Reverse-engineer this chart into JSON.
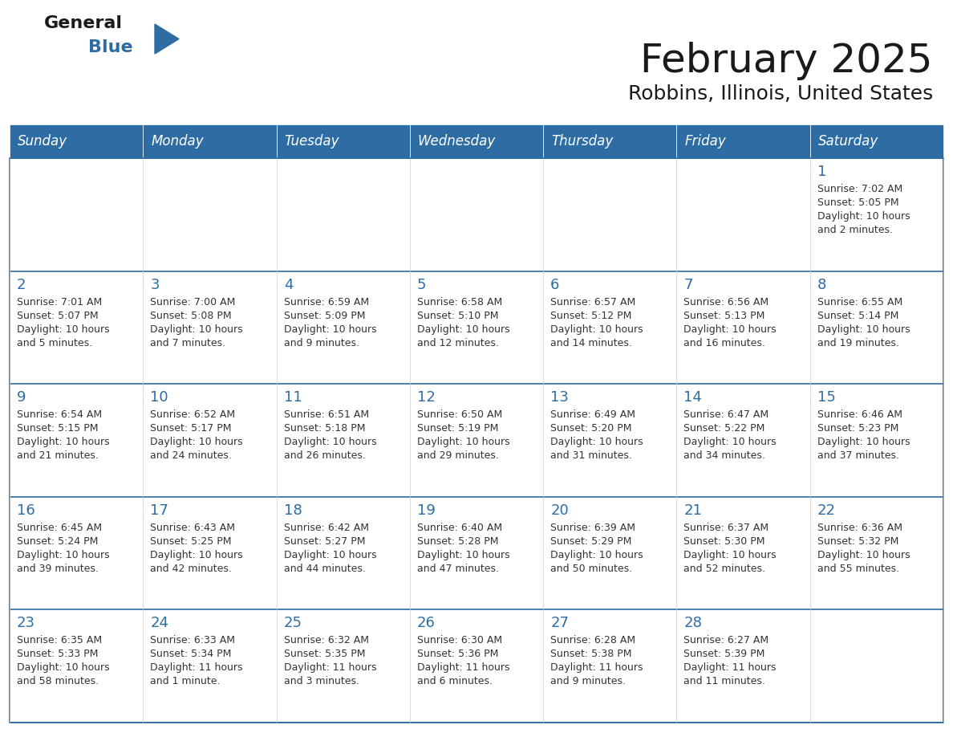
{
  "title": "February 2025",
  "subtitle": "Robbins, Illinois, United States",
  "header_color": "#2E6DA4",
  "header_text_color": "#FFFFFF",
  "cell_bg_light": "#F2F2F2",
  "cell_bg_white": "#FFFFFF",
  "border_color": "#2E6DA4",
  "text_color": "#333333",
  "day_num_color": "#2E6DA4",
  "day_names": [
    "Sunday",
    "Monday",
    "Tuesday",
    "Wednesday",
    "Thursday",
    "Friday",
    "Saturday"
  ],
  "days": [
    {
      "day": 1,
      "col": 6,
      "row": 0,
      "sunrise": "7:02 AM",
      "sunset": "5:05 PM",
      "daylight": "10 hours\nand 2 minutes."
    },
    {
      "day": 2,
      "col": 0,
      "row": 1,
      "sunrise": "7:01 AM",
      "sunset": "5:07 PM",
      "daylight": "10 hours\nand 5 minutes."
    },
    {
      "day": 3,
      "col": 1,
      "row": 1,
      "sunrise": "7:00 AM",
      "sunset": "5:08 PM",
      "daylight": "10 hours\nand 7 minutes."
    },
    {
      "day": 4,
      "col": 2,
      "row": 1,
      "sunrise": "6:59 AM",
      "sunset": "5:09 PM",
      "daylight": "10 hours\nand 9 minutes."
    },
    {
      "day": 5,
      "col": 3,
      "row": 1,
      "sunrise": "6:58 AM",
      "sunset": "5:10 PM",
      "daylight": "10 hours\nand 12 minutes."
    },
    {
      "day": 6,
      "col": 4,
      "row": 1,
      "sunrise": "6:57 AM",
      "sunset": "5:12 PM",
      "daylight": "10 hours\nand 14 minutes."
    },
    {
      "day": 7,
      "col": 5,
      "row": 1,
      "sunrise": "6:56 AM",
      "sunset": "5:13 PM",
      "daylight": "10 hours\nand 16 minutes."
    },
    {
      "day": 8,
      "col": 6,
      "row": 1,
      "sunrise": "6:55 AM",
      "sunset": "5:14 PM",
      "daylight": "10 hours\nand 19 minutes."
    },
    {
      "day": 9,
      "col": 0,
      "row": 2,
      "sunrise": "6:54 AM",
      "sunset": "5:15 PM",
      "daylight": "10 hours\nand 21 minutes."
    },
    {
      "day": 10,
      "col": 1,
      "row": 2,
      "sunrise": "6:52 AM",
      "sunset": "5:17 PM",
      "daylight": "10 hours\nand 24 minutes."
    },
    {
      "day": 11,
      "col": 2,
      "row": 2,
      "sunrise": "6:51 AM",
      "sunset": "5:18 PM",
      "daylight": "10 hours\nand 26 minutes."
    },
    {
      "day": 12,
      "col": 3,
      "row": 2,
      "sunrise": "6:50 AM",
      "sunset": "5:19 PM",
      "daylight": "10 hours\nand 29 minutes."
    },
    {
      "day": 13,
      "col": 4,
      "row": 2,
      "sunrise": "6:49 AM",
      "sunset": "5:20 PM",
      "daylight": "10 hours\nand 31 minutes."
    },
    {
      "day": 14,
      "col": 5,
      "row": 2,
      "sunrise": "6:47 AM",
      "sunset": "5:22 PM",
      "daylight": "10 hours\nand 34 minutes."
    },
    {
      "day": 15,
      "col": 6,
      "row": 2,
      "sunrise": "6:46 AM",
      "sunset": "5:23 PM",
      "daylight": "10 hours\nand 37 minutes."
    },
    {
      "day": 16,
      "col": 0,
      "row": 3,
      "sunrise": "6:45 AM",
      "sunset": "5:24 PM",
      "daylight": "10 hours\nand 39 minutes."
    },
    {
      "day": 17,
      "col": 1,
      "row": 3,
      "sunrise": "6:43 AM",
      "sunset": "5:25 PM",
      "daylight": "10 hours\nand 42 minutes."
    },
    {
      "day": 18,
      "col": 2,
      "row": 3,
      "sunrise": "6:42 AM",
      "sunset": "5:27 PM",
      "daylight": "10 hours\nand 44 minutes."
    },
    {
      "day": 19,
      "col": 3,
      "row": 3,
      "sunrise": "6:40 AM",
      "sunset": "5:28 PM",
      "daylight": "10 hours\nand 47 minutes."
    },
    {
      "day": 20,
      "col": 4,
      "row": 3,
      "sunrise": "6:39 AM",
      "sunset": "5:29 PM",
      "daylight": "10 hours\nand 50 minutes."
    },
    {
      "day": 21,
      "col": 5,
      "row": 3,
      "sunrise": "6:37 AM",
      "sunset": "5:30 PM",
      "daylight": "10 hours\nand 52 minutes."
    },
    {
      "day": 22,
      "col": 6,
      "row": 3,
      "sunrise": "6:36 AM",
      "sunset": "5:32 PM",
      "daylight": "10 hours\nand 55 minutes."
    },
    {
      "day": 23,
      "col": 0,
      "row": 4,
      "sunrise": "6:35 AM",
      "sunset": "5:33 PM",
      "daylight": "10 hours\nand 58 minutes."
    },
    {
      "day": 24,
      "col": 1,
      "row": 4,
      "sunrise": "6:33 AM",
      "sunset": "5:34 PM",
      "daylight": "11 hours\nand 1 minute."
    },
    {
      "day": 25,
      "col": 2,
      "row": 4,
      "sunrise": "6:32 AM",
      "sunset": "5:35 PM",
      "daylight": "11 hours\nand 3 minutes."
    },
    {
      "day": 26,
      "col": 3,
      "row": 4,
      "sunrise": "6:30 AM",
      "sunset": "5:36 PM",
      "daylight": "11 hours\nand 6 minutes."
    },
    {
      "day": 27,
      "col": 4,
      "row": 4,
      "sunrise": "6:28 AM",
      "sunset": "5:38 PM",
      "daylight": "11 hours\nand 9 minutes."
    },
    {
      "day": 28,
      "col": 5,
      "row": 4,
      "sunrise": "6:27 AM",
      "sunset": "5:39 PM",
      "daylight": "11 hours\nand 11 minutes."
    }
  ],
  "num_rows": 5,
  "fig_width": 11.88,
  "fig_height": 9.18,
  "logo_general_color": "#1a1a1a",
  "logo_blue_color": "#2E6DA4",
  "logo_triangle_color": "#2E6DA4",
  "title_fontsize": 36,
  "subtitle_fontsize": 18,
  "header_fontsize": 12,
  "day_num_fontsize": 13,
  "cell_text_fontsize": 9
}
